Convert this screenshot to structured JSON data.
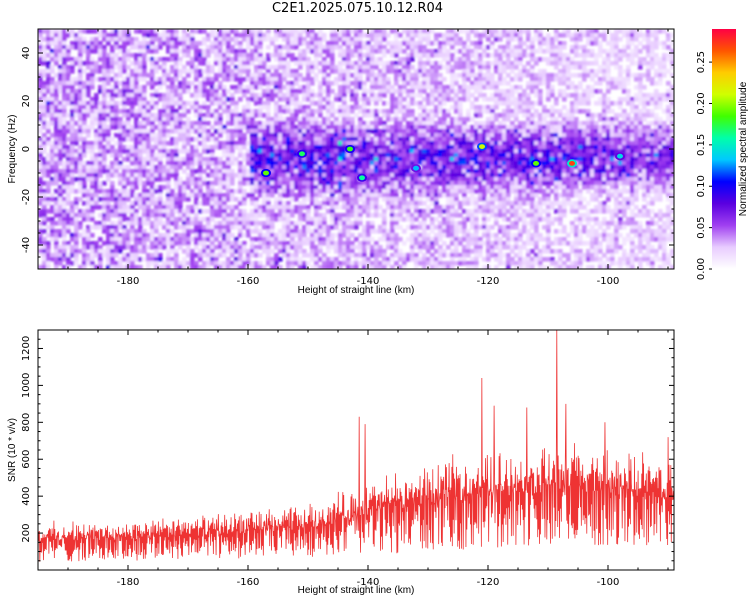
{
  "title": "C2E1.2025.075.10.12.R04",
  "colors": {
    "snr_line": "#ee3333",
    "frame": "#000000"
  },
  "chart_data": [
    {
      "type": "heatmap",
      "xlabel": "Height of straight line (km)",
      "ylabel": "Frequency (Hz)",
      "xlim": [
        -195,
        -89
      ],
      "ylim": [
        -50,
        50
      ],
      "x_ticks": [
        -180,
        -160,
        -140,
        -120,
        -100
      ],
      "y_ticks": [
        -40,
        -20,
        0,
        20,
        40
      ],
      "colorbar": {
        "label": "Normalized spectral amplitude",
        "range": [
          0,
          0.29
        ],
        "ticks": [
          0.0,
          0.05,
          0.1,
          0.15,
          0.2,
          0.25
        ],
        "colormap": [
          "#ffffff",
          "#e8ccff",
          "#a040f0",
          "#5a00e0",
          "#0000ff",
          "#00c8ff",
          "#00ffaa",
          "#40ff00",
          "#d0ff00",
          "#ffcc00",
          "#ff5500",
          "#ff0044"
        ]
      },
      "signal_band": {
        "center_hz": -4,
        "half_width_hz": 13,
        "starts_near_km": -160
      },
      "hotspots": [
        {
          "x": -157,
          "y": -10,
          "value": 0.19
        },
        {
          "x": -151,
          "y": -2,
          "value": 0.17
        },
        {
          "x": -143,
          "y": 0,
          "value": 0.18
        },
        {
          "x": -141,
          "y": -12,
          "value": 0.16
        },
        {
          "x": -132,
          "y": -8,
          "value": 0.13
        },
        {
          "x": -121,
          "y": 1,
          "value": 0.21
        },
        {
          "x": -112,
          "y": -6,
          "value": 0.19
        },
        {
          "x": -106,
          "y": -6,
          "value": 0.27
        },
        {
          "x": -98,
          "y": -3,
          "value": 0.14
        }
      ]
    },
    {
      "type": "line",
      "xlabel": "Height of straight line (km)",
      "ylabel": "SNR (10 * v/v)",
      "xlim": [
        -195,
        -89
      ],
      "ylim": [
        0,
        1300
      ],
      "x_ticks": [
        -180,
        -160,
        -140,
        -120,
        -100
      ],
      "y_ticks": [
        200,
        400,
        600,
        800,
        1000,
        1200
      ],
      "envelope": [
        {
          "x": -195,
          "low": 40,
          "high": 270
        },
        {
          "x": -180,
          "low": 50,
          "high": 280
        },
        {
          "x": -165,
          "low": 60,
          "high": 320
        },
        {
          "x": -150,
          "low": 70,
          "high": 370
        },
        {
          "x": -142,
          "low": 80,
          "high": 480
        },
        {
          "x": -135,
          "low": 90,
          "high": 560
        },
        {
          "x": -125,
          "low": 110,
          "high": 640
        },
        {
          "x": -115,
          "low": 120,
          "high": 700
        },
        {
          "x": -105,
          "low": 130,
          "high": 720
        },
        {
          "x": -95,
          "low": 130,
          "high": 660
        },
        {
          "x": -89,
          "low": 130,
          "high": 620
        }
      ],
      "peaks": [
        {
          "x": -141.5,
          "y": 830
        },
        {
          "x": -140.5,
          "y": 790
        },
        {
          "x": -121,
          "y": 1040
        },
        {
          "x": -119,
          "y": 890
        },
        {
          "x": -113.5,
          "y": 880
        },
        {
          "x": -108.5,
          "y": 1300
        },
        {
          "x": -107,
          "y": 900
        },
        {
          "x": -100.5,
          "y": 800
        },
        {
          "x": -90,
          "y": 720
        }
      ]
    }
  ]
}
